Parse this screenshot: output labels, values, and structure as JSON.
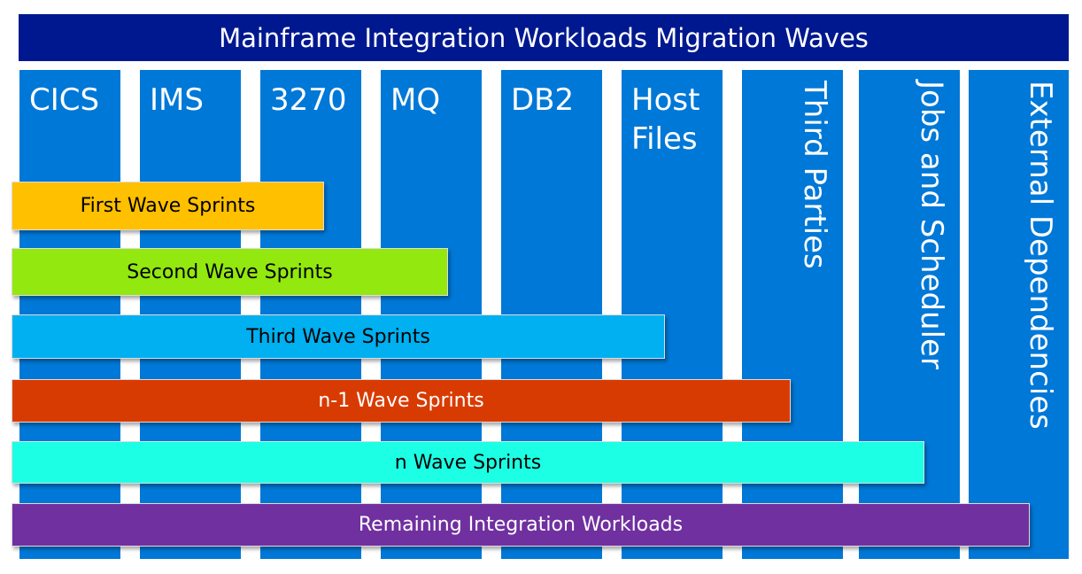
{
  "title": "Mainframe Integration Workloads Migration Waves",
  "columns": [
    {
      "label": "CICS"
    },
    {
      "label": "IMS"
    },
    {
      "label": "3270"
    },
    {
      "label": "MQ"
    },
    {
      "label": "DB2"
    },
    {
      "label": "Host Files"
    },
    {
      "label": "Third Parties"
    },
    {
      "label": "Jobs and Scheduler"
    },
    {
      "label": "External Dependencies"
    }
  ],
  "waves": [
    {
      "label": "First Wave Sprints",
      "color": "#ffc000"
    },
    {
      "label": "Second Wave Sprints",
      "color": "#92e80f"
    },
    {
      "label": "Third Wave Sprints",
      "color": "#00b0f0"
    },
    {
      "label": "n-1 Wave Sprints",
      "color": "#d83b01"
    },
    {
      "label": "n Wave Sprints",
      "color": "#1cffe4"
    },
    {
      "label": "Remaining Integration Workloads",
      "color": "#7030a0"
    }
  ],
  "colors": {
    "title_bg": "#00188f",
    "column_bg": "#0078d7"
  }
}
